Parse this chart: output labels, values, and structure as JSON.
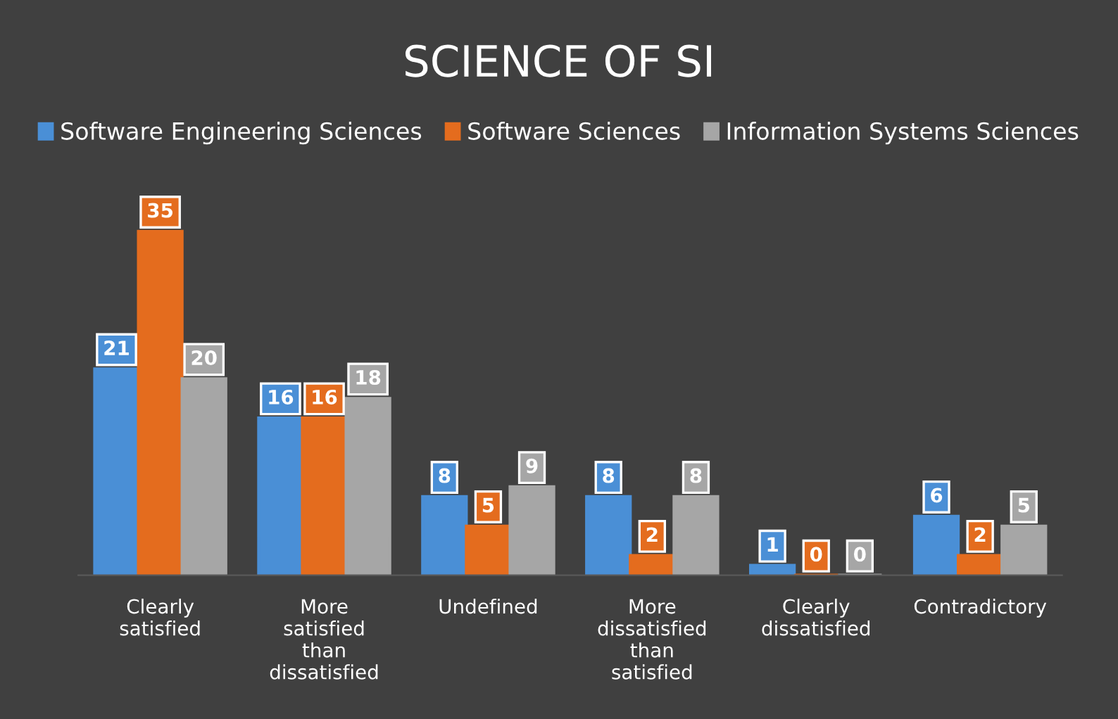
{
  "chart_data": {
    "type": "bar",
    "title": "SCIENCE OF SI",
    "categories": [
      "Clearly\nsatisfied",
      "More\nsatisfied\nthan\ndissatisfied",
      "Undefined",
      "More\ndissatisfied\nthan\nsatisfied",
      "Clearly\ndissatisfied",
      "Contradictory"
    ],
    "series": [
      {
        "name": "Software Engineering Sciences",
        "color": "#4a8fd6",
        "values": [
          21,
          16,
          8,
          8,
          1,
          6
        ]
      },
      {
        "name": "Software Sciences",
        "color": "#e46c1e",
        "values": [
          35,
          16,
          5,
          2,
          0,
          2
        ]
      },
      {
        "name": "Information Systems Sciences",
        "color": "#a6a6a6",
        "values": [
          20,
          18,
          9,
          8,
          0,
          5
        ]
      }
    ],
    "data_labels": true,
    "legend": "top",
    "grid": false
  }
}
